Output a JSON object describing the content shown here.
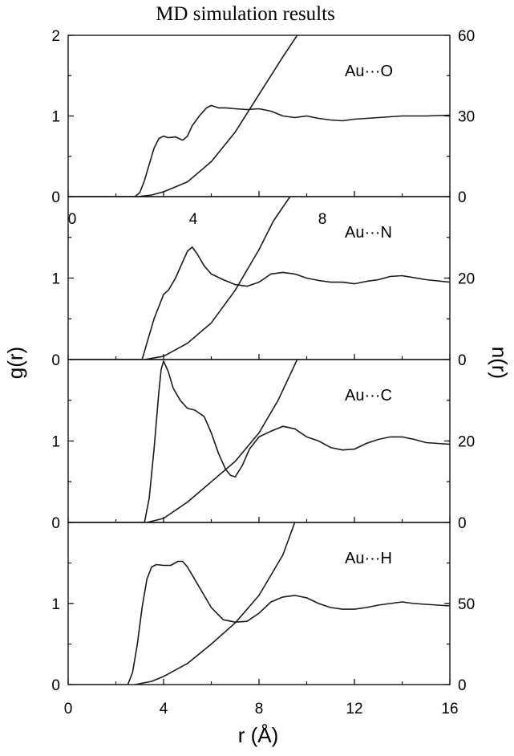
{
  "chart_data": {
    "type": "line",
    "title": "MD simulation results",
    "xlabel": "r (Å)",
    "ylabel_left": "g(r)",
    "ylabel_right": "n(r)",
    "xlim": [
      0,
      16
    ],
    "bottom_x_ticks": [
      "0",
      "4",
      "8",
      "12",
      "16"
    ],
    "inner_x_ticks": [
      "0",
      "4",
      "8"
    ],
    "panels": [
      {
        "label": "Au···O",
        "g_ylim": [
          0,
          2
        ],
        "g_ticks": [
          "0",
          "1",
          "2"
        ],
        "n_ylim": [
          0,
          60
        ],
        "n_ticks": [
          "0",
          "30",
          "60"
        ],
        "series": [
          {
            "axis": "g",
            "x": [
              0,
              2.8,
              3.0,
              3.2,
              3.4,
              3.6,
              3.8,
              4.0,
              4.2,
              4.5,
              4.8,
              5.0,
              5.2,
              5.5,
              5.8,
              6.0,
              6.3,
              6.6,
              7.0,
              7.5,
              8.0,
              8.5,
              9.0,
              9.5,
              10.0,
              10.5,
              11.0,
              11.5,
              12.0,
              13.0,
              14.0,
              15.0,
              16.0
            ],
            "y": [
              0,
              0,
              0.05,
              0.2,
              0.4,
              0.6,
              0.72,
              0.75,
              0.73,
              0.74,
              0.7,
              0.75,
              0.88,
              1.0,
              1.1,
              1.13,
              1.1,
              1.1,
              1.09,
              1.08,
              1.09,
              1.06,
              1.0,
              0.98,
              1.0,
              0.97,
              0.95,
              0.94,
              0.96,
              0.98,
              1.0,
              1.0,
              1.01
            ]
          },
          {
            "axis": "n",
            "x": [
              2.9,
              3.5,
              4.0,
              5.0,
              6.0,
              7.0,
              8.0,
              9.0,
              9.6
            ],
            "y": [
              0,
              0.6,
              1.8,
              5.5,
              13,
              24,
              38,
              52,
              60
            ]
          }
        ]
      },
      {
        "label": "Au···N",
        "g_ylim": [
          0,
          2
        ],
        "g_ticks": [
          "0",
          "1"
        ],
        "n_ylim": [
          0,
          40
        ],
        "n_ticks": [
          "0",
          "20"
        ],
        "series": [
          {
            "axis": "g",
            "x": [
              0,
              3.1,
              3.2,
              3.4,
              3.6,
              3.8,
              4.0,
              4.2,
              4.5,
              4.8,
              5.0,
              5.2,
              5.4,
              5.7,
              6.0,
              6.5,
              7.0,
              7.5,
              8.0,
              8.5,
              9.0,
              9.5,
              10.0,
              10.5,
              11.0,
              11.5,
              12.0,
              12.5,
              13.0,
              13.5,
              14.0,
              15.0,
              16.0
            ],
            "y": [
              0,
              0,
              0.1,
              0.3,
              0.5,
              0.65,
              0.8,
              0.85,
              1.0,
              1.2,
              1.33,
              1.38,
              1.3,
              1.15,
              1.05,
              0.98,
              0.92,
              0.9,
              0.95,
              1.05,
              1.07,
              1.05,
              1.0,
              0.97,
              0.95,
              0.95,
              0.93,
              0.96,
              0.98,
              1.02,
              1.03,
              0.98,
              0.95
            ]
          },
          {
            "axis": "n",
            "x": [
              3.2,
              4.0,
              5.0,
              6.0,
              7.0,
              8.0,
              8.6,
              9.3
            ],
            "y": [
              0,
              0.8,
              4,
              9,
              17,
              27,
              34,
              40
            ]
          }
        ]
      },
      {
        "label": "Au···C",
        "g_ylim": [
          0,
          2
        ],
        "g_ticks": [
          "0",
          "1"
        ],
        "n_ylim": [
          0,
          40
        ],
        "n_ticks": [
          "0",
          "20"
        ],
        "series": [
          {
            "axis": "g",
            "x": [
              0,
              3.2,
              3.4,
              3.6,
              3.8,
              3.9,
              4.0,
              4.2,
              4.4,
              4.7,
              5.0,
              5.3,
              5.7,
              6.0,
              6.3,
              6.6,
              6.8,
              7.0,
              7.3,
              7.6,
              8.0,
              8.5,
              9.0,
              9.5,
              10.0,
              10.5,
              11.0,
              11.5,
              12.0,
              12.5,
              13.0,
              13.5,
              14.0,
              14.5,
              15.0,
              16.0
            ],
            "y": [
              0,
              0,
              0.3,
              0.9,
              1.6,
              1.88,
              1.98,
              1.85,
              1.65,
              1.5,
              1.4,
              1.38,
              1.3,
              1.1,
              0.85,
              0.65,
              0.58,
              0.56,
              0.7,
              0.9,
              1.05,
              1.12,
              1.18,
              1.15,
              1.05,
              1.0,
              0.92,
              0.89,
              0.9,
              0.97,
              1.02,
              1.05,
              1.05,
              1.02,
              0.98,
              0.96
            ]
          },
          {
            "axis": "n",
            "x": [
              3.3,
              4.0,
              5.0,
              6.0,
              7.0,
              8.0,
              8.8,
              9.6
            ],
            "y": [
              0,
              1.0,
              5,
              10,
              15,
              22,
              30,
              40
            ]
          }
        ]
      },
      {
        "label": "Au···H",
        "g_ylim": [
          0,
          2
        ],
        "g_ticks": [
          "0",
          "1"
        ],
        "n_ylim": [
          0,
          100
        ],
        "n_ticks": [
          "0",
          "50"
        ],
        "series": [
          {
            "axis": "g",
            "x": [
              0,
              2.5,
              2.7,
              2.9,
              3.1,
              3.3,
              3.5,
              3.7,
              4.0,
              4.3,
              4.6,
              4.8,
              5.0,
              5.3,
              5.7,
              6.0,
              6.5,
              7.0,
              7.5,
              8.0,
              8.5,
              9.0,
              9.5,
              10.0,
              10.5,
              11.0,
              11.5,
              12.0,
              12.5,
              13.0,
              13.5,
              14.0,
              14.5,
              15.0,
              16.0
            ],
            "y": [
              0,
              0,
              0.15,
              0.5,
              0.95,
              1.3,
              1.45,
              1.48,
              1.47,
              1.47,
              1.52,
              1.52,
              1.45,
              1.3,
              1.1,
              0.95,
              0.8,
              0.77,
              0.78,
              0.88,
              1.02,
              1.08,
              1.1,
              1.07,
              1.0,
              0.95,
              0.93,
              0.93,
              0.95,
              0.98,
              1.0,
              1.02,
              1.0,
              0.99,
              0.97
            ]
          },
          {
            "axis": "n",
            "x": [
              2.8,
              3.5,
              4.0,
              5.0,
              6.0,
              7.0,
              8.0,
              9.0,
              9.5
            ],
            "y": [
              0,
              2,
              5,
              13,
              25,
              38,
              55,
              80,
              100
            ]
          }
        ]
      }
    ]
  }
}
